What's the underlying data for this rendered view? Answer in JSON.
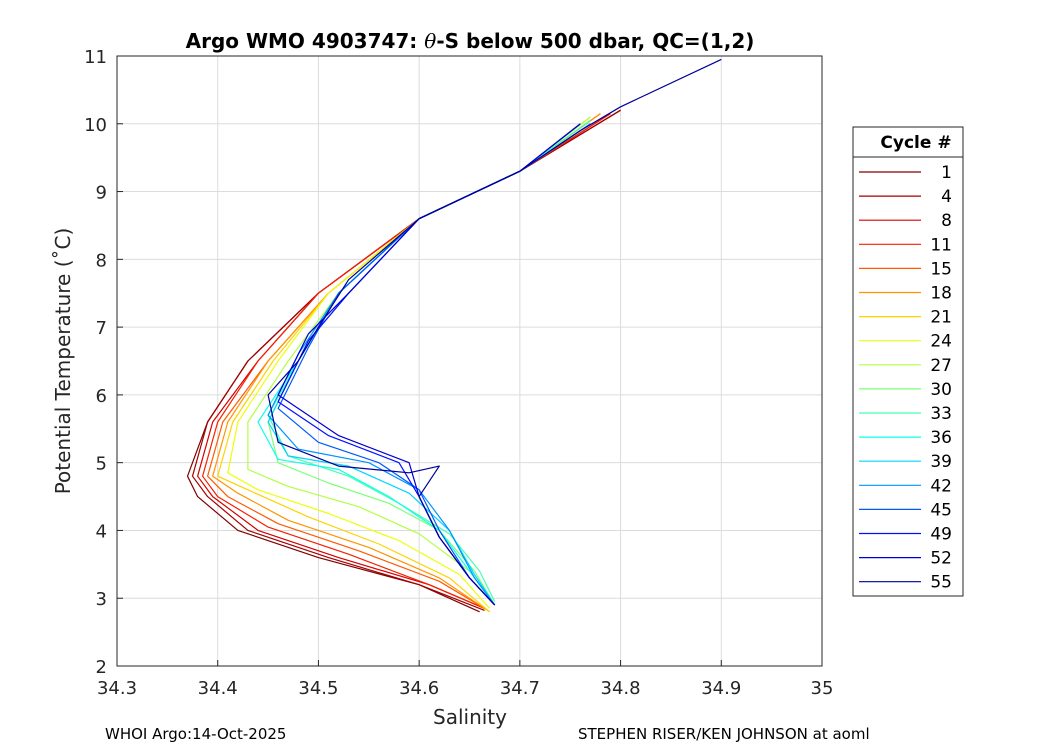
{
  "chart_data": {
    "type": "line",
    "title_prefix": "Argo WMO 4903747: ",
    "title_symbol": "θ",
    "title_suffix": "-S below 500 dbar,  QC=(1,2)",
    "xlabel": "Salinity",
    "ylabel": "Potential Temperature (˚C)",
    "xlim": [
      34.3,
      35
    ],
    "ylim": [
      2,
      11
    ],
    "xticks": [
      "34.3",
      "34.4",
      "34.5",
      "34.6",
      "34.7",
      "34.8",
      "34.9",
      "35"
    ],
    "yticks": [
      "2",
      "3",
      "4",
      "5",
      "6",
      "7",
      "8",
      "9",
      "10",
      "11"
    ],
    "grid": true,
    "legend": {
      "title": "Cycle #",
      "placement": "outside-right",
      "entries": [
        {
          "label": "1",
          "color": "#800000"
        },
        {
          "label": "4",
          "color": "#a30000"
        },
        {
          "label": "8",
          "color": "#d40000"
        },
        {
          "label": "11",
          "color": "#f52000"
        },
        {
          "label": "15",
          "color": "#ff5a00"
        },
        {
          "label": "18",
          "color": "#ff9400"
        },
        {
          "label": "21",
          "color": "#ffd200"
        },
        {
          "label": "24",
          "color": "#eaff0d"
        },
        {
          "label": "27",
          "color": "#b1ff46"
        },
        {
          "label": "30",
          "color": "#7dff7a"
        },
        {
          "label": "33",
          "color": "#46ffb1"
        },
        {
          "label": "36",
          "color": "#0dffea"
        },
        {
          "label": "39",
          "color": "#00d4ff"
        },
        {
          "label": "42",
          "color": "#0094ff"
        },
        {
          "label": "45",
          "color": "#0058ff"
        },
        {
          "label": "49",
          "color": "#0010ff"
        },
        {
          "label": "52",
          "color": "#0000d4"
        },
        {
          "label": "55",
          "color": "#00009a"
        }
      ]
    },
    "series": [
      {
        "name": "1",
        "x": [
          34.8,
          34.7,
          34.6,
          34.5,
          34.43,
          34.39,
          34.37,
          34.38,
          34.42,
          34.5,
          34.6,
          34.66
        ],
        "y": [
          10.2,
          9.3,
          8.6,
          7.5,
          6.5,
          5.6,
          4.8,
          4.5,
          4.0,
          3.6,
          3.2,
          2.8
        ]
      },
      {
        "name": "4",
        "x": [
          34.8,
          34.7,
          34.6,
          34.5,
          34.43,
          34.39,
          34.375,
          34.39,
          34.43,
          34.51,
          34.6,
          34.665
        ],
        "y": [
          10.2,
          9.3,
          8.6,
          7.5,
          6.5,
          5.6,
          4.8,
          4.5,
          4.0,
          3.6,
          3.2,
          2.82
        ]
      },
      {
        "name": "8",
        "x": [
          34.79,
          34.7,
          34.6,
          34.5,
          34.44,
          34.395,
          34.38,
          34.395,
          34.44,
          34.52,
          34.61,
          34.665
        ],
        "y": [
          10.15,
          9.3,
          8.6,
          7.5,
          6.5,
          5.6,
          4.8,
          4.5,
          4.0,
          3.6,
          3.2,
          2.85
        ]
      },
      {
        "name": "11",
        "x": [
          34.79,
          34.7,
          34.6,
          34.5,
          34.44,
          34.4,
          34.385,
          34.4,
          34.45,
          34.53,
          34.61,
          34.665
        ],
        "y": [
          10.15,
          9.3,
          8.6,
          7.5,
          6.5,
          5.6,
          4.8,
          4.5,
          4.05,
          3.65,
          3.2,
          2.85
        ]
      },
      {
        "name": "15",
        "x": [
          34.78,
          34.7,
          34.6,
          34.51,
          34.45,
          34.405,
          34.39,
          34.41,
          34.46,
          34.54,
          34.62,
          34.665
        ],
        "y": [
          10.15,
          9.3,
          8.6,
          7.5,
          6.5,
          5.6,
          4.8,
          4.5,
          4.1,
          3.7,
          3.25,
          2.85
        ]
      },
      {
        "name": "18",
        "x": [
          34.78,
          34.7,
          34.6,
          34.51,
          34.45,
          34.41,
          34.395,
          34.42,
          34.47,
          34.55,
          34.62,
          34.67
        ],
        "y": [
          10.15,
          9.3,
          8.6,
          7.5,
          6.5,
          5.6,
          4.8,
          4.55,
          4.15,
          3.75,
          3.3,
          2.8
        ]
      },
      {
        "name": "21",
        "x": [
          34.77,
          34.7,
          34.6,
          34.51,
          34.455,
          34.415,
          34.4,
          34.43,
          34.49,
          34.56,
          34.63,
          34.67
        ],
        "y": [
          10.1,
          9.3,
          8.6,
          7.5,
          6.5,
          5.6,
          4.8,
          4.6,
          4.2,
          3.8,
          3.3,
          2.8
        ]
      },
      {
        "name": "24",
        "x": [
          34.77,
          34.7,
          34.6,
          34.51,
          34.46,
          34.42,
          34.41,
          34.44,
          34.51,
          34.58,
          34.64,
          34.67
        ],
        "y": [
          10.1,
          9.3,
          8.6,
          7.5,
          6.5,
          5.6,
          4.85,
          4.6,
          4.25,
          3.85,
          3.35,
          2.85
        ]
      },
      {
        "name": "27",
        "x": [
          34.77,
          34.7,
          34.6,
          34.52,
          34.47,
          34.43,
          34.43,
          34.47,
          34.54,
          34.6,
          34.65,
          34.675
        ],
        "y": [
          10.1,
          9.3,
          8.6,
          7.5,
          6.5,
          5.6,
          4.9,
          4.65,
          4.35,
          3.95,
          3.4,
          2.9
        ]
      },
      {
        "name": "30",
        "x": [
          34.77,
          34.7,
          34.6,
          34.52,
          34.48,
          34.45,
          34.46,
          34.51,
          34.57,
          34.62,
          34.655,
          34.675
        ],
        "y": [
          10.05,
          9.3,
          8.6,
          7.5,
          6.5,
          5.6,
          5.0,
          4.7,
          4.4,
          4.0,
          3.4,
          2.9
        ]
      },
      {
        "name": "33",
        "x": [
          34.77,
          34.7,
          34.6,
          34.52,
          34.48,
          34.45,
          34.47,
          34.53,
          34.58,
          34.63,
          34.66,
          34.675
        ],
        "y": [
          10.05,
          9.3,
          8.6,
          7.5,
          6.5,
          5.7,
          5.1,
          4.8,
          4.4,
          3.95,
          3.4,
          2.95
        ]
      },
      {
        "name": "36",
        "x": [
          34.77,
          34.7,
          34.6,
          34.52,
          34.48,
          34.44,
          34.46,
          34.52,
          34.57,
          34.62,
          34.65,
          34.675
        ],
        "y": [
          10.0,
          9.3,
          8.6,
          7.5,
          6.5,
          5.6,
          5.05,
          4.9,
          4.5,
          4.0,
          3.4,
          2.9
        ]
      },
      {
        "name": "39",
        "x": [
          34.77,
          34.7,
          34.6,
          34.52,
          34.48,
          34.45,
          34.47,
          34.53,
          34.59,
          34.63,
          34.655,
          34.675
        ],
        "y": [
          10.0,
          9.3,
          8.6,
          7.5,
          6.5,
          5.6,
          5.1,
          4.95,
          4.55,
          4.0,
          3.35,
          2.9
        ]
      },
      {
        "name": "42",
        "x": [
          34.77,
          34.7,
          34.6,
          34.52,
          34.48,
          34.45,
          34.48,
          34.55,
          34.6,
          34.63,
          34.655,
          34.675
        ],
        "y": [
          10.0,
          9.3,
          8.6,
          7.5,
          6.6,
          5.7,
          5.2,
          5.0,
          4.6,
          4.0,
          3.3,
          2.9
        ]
      },
      {
        "name": "45",
        "x": [
          34.76,
          34.7,
          34.6,
          34.52,
          34.49,
          34.46,
          34.5,
          34.56,
          34.6,
          34.62,
          34.65,
          34.675
        ],
        "y": [
          10.0,
          9.3,
          8.6,
          7.5,
          6.7,
          5.8,
          5.3,
          5.0,
          4.6,
          4.0,
          3.3,
          2.9
        ]
      },
      {
        "name": "49",
        "x": [
          34.76,
          34.7,
          34.6,
          34.53,
          34.49,
          34.46,
          34.51,
          34.58,
          34.6,
          34.62,
          34.65,
          34.675
        ],
        "y": [
          10.0,
          9.3,
          8.6,
          7.5,
          6.8,
          5.9,
          5.4,
          5.0,
          4.5,
          3.9,
          3.3,
          2.9
        ]
      },
      {
        "name": "52",
        "x": [
          34.76,
          34.7,
          34.6,
          34.53,
          34.49,
          34.46,
          34.52,
          34.59,
          34.6,
          34.62,
          34.65,
          34.675
        ],
        "y": [
          10.0,
          9.3,
          8.6,
          7.5,
          6.9,
          6.0,
          5.4,
          5.0,
          4.5,
          3.9,
          3.3,
          2.9
        ]
      },
      {
        "name": "55",
        "x": [
          34.9,
          34.8,
          34.76,
          34.7,
          34.6,
          34.53,
          34.5,
          34.48,
          34.45,
          34.46,
          34.52,
          34.59,
          34.62,
          34.6,
          34.62,
          34.65,
          34.675
        ],
        "y": [
          10.95,
          10.25,
          9.9,
          9.3,
          8.6,
          7.7,
          7.0,
          6.5,
          6.0,
          5.3,
          4.95,
          4.85,
          4.95,
          4.5,
          3.9,
          3.3,
          2.9
        ]
      }
    ]
  },
  "footer": {
    "left": "WHOI Argo:14-Oct-2025",
    "right": "STEPHEN RISER/KEN JOHNSON at aoml"
  }
}
